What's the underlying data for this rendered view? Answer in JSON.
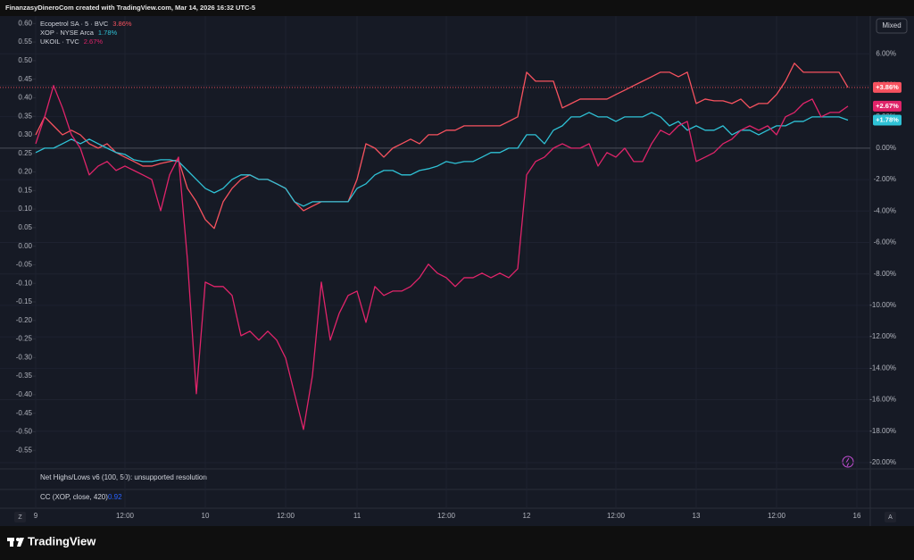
{
  "header": {
    "title": "FinanzasyDineroCom created with TradingView.com, Mar 14, 2026 16:32 UTC-5"
  },
  "chart_data": {
    "type": "line",
    "scale_mode": "Mixed",
    "categories": [
      "9",
      null,
      null,
      null,
      null,
      null,
      null,
      null,
      null,
      null,
      "12:00",
      null,
      null,
      null,
      null,
      null,
      null,
      null,
      null,
      "10",
      null,
      null,
      null,
      null,
      null,
      null,
      null,
      null,
      "12:00",
      null,
      null,
      null,
      null,
      null,
      null,
      null,
      "11",
      null,
      null,
      null,
      null,
      null,
      null,
      null,
      null,
      null,
      "12:00",
      null,
      null,
      null,
      null,
      null,
      null,
      null,
      null,
      "12",
      null,
      null,
      null,
      null,
      null,
      null,
      null,
      null,
      null,
      "12:00",
      null,
      null,
      null,
      null,
      null,
      null,
      null,
      null,
      "13",
      null,
      null,
      null,
      null,
      null,
      null,
      null,
      null,
      "12:00",
      null,
      null,
      null,
      null,
      null,
      null,
      null,
      null,
      "16"
    ],
    "series": [
      {
        "name": "Ecopetrol SA · 5 · BVC",
        "legend_value": "3.86%",
        "badge": "+3.86%",
        "color": "#f7525f",
        "axis": "y2",
        "values": [
          0.85,
          1.99,
          1.42,
          0.85,
          1.14,
          0.85,
          0.28,
          0,
          0.28,
          -0.28,
          -0.57,
          -0.85,
          -1.14,
          -1.14,
          -0.97,
          -0.85,
          -0.74,
          -2.56,
          -3.41,
          -4.54,
          -5.11,
          -3.41,
          -2.56,
          -1.99,
          -1.7,
          -1.99,
          -1.99,
          -2.27,
          -2.56,
          -3.41,
          -3.98,
          -3.69,
          -3.41,
          -3.41,
          -3.41,
          -3.41,
          -1.99,
          0.28,
          0,
          -0.57,
          0,
          0.28,
          0.57,
          0.28,
          0.85,
          0.85,
          1.14,
          1.14,
          1.42,
          1.42,
          1.42,
          1.42,
          1.42,
          1.7,
          1.99,
          4.83,
          4.26,
          4.26,
          4.26,
          2.56,
          2.84,
          3.12,
          3.12,
          3.12,
          3.12,
          3.41,
          3.69,
          3.98,
          4.26,
          4.54,
          4.83,
          4.83,
          4.54,
          4.83,
          2.84,
          3.12,
          3.01,
          3.01,
          2.84,
          3.12,
          2.56,
          2.84,
          2.84,
          3.41,
          4.26,
          5.4,
          4.83,
          4.83,
          4.83,
          4.83,
          4.83,
          3.86,
          null
        ]
      },
      {
        "name": "XOP · NYSE Arca",
        "legend_value": "1.78%",
        "badge": "+1.78%",
        "color": "#2fc2d6",
        "axis": "y2",
        "values": [
          -0.28,
          0,
          0,
          0.28,
          0.57,
          0.28,
          0.57,
          0.28,
          0,
          -0.28,
          -0.4,
          -0.74,
          -0.85,
          -0.85,
          -0.74,
          -0.74,
          -0.85,
          -1.42,
          -1.99,
          -2.56,
          -2.84,
          -2.56,
          -1.99,
          -1.7,
          -1.7,
          -1.99,
          -1.99,
          -2.27,
          -2.56,
          -3.41,
          -3.69,
          -3.41,
          -3.41,
          -3.41,
          -3.41,
          -3.41,
          -2.56,
          -2.27,
          -1.7,
          -1.42,
          -1.42,
          -1.7,
          -1.7,
          -1.42,
          -1.31,
          -1.14,
          -0.85,
          -0.97,
          -0.85,
          -0.85,
          -0.57,
          -0.28,
          -0.28,
          0,
          0,
          0.85,
          0.85,
          0.28,
          1.14,
          1.42,
          1.99,
          1.99,
          2.27,
          1.99,
          1.99,
          1.7,
          1.99,
          1.99,
          1.99,
          2.27,
          1.99,
          1.42,
          1.7,
          1.14,
          1.42,
          1.14,
          1.14,
          1.42,
          0.85,
          1.14,
          1.14,
          0.85,
          1.14,
          1.42,
          1.42,
          1.7,
          1.7,
          1.99,
          1.99,
          1.99,
          1.99,
          1.78,
          null
        ]
      },
      {
        "name": "UKOIL · TVC",
        "legend_value": "2.67%",
        "badge": "+2.67%",
        "color": "#e0246a",
        "axis": "y2",
        "values": [
          0.28,
          1.99,
          3.98,
          2.56,
          0.85,
          0,
          -1.7,
          -1.14,
          -0.85,
          -1.42,
          -1.14,
          -1.42,
          -1.7,
          -1.99,
          -3.98,
          -1.7,
          -0.57,
          -7.1,
          -15.62,
          -8.52,
          -8.8,
          -8.8,
          -9.37,
          -11.93,
          -11.64,
          -12.21,
          -11.64,
          -12.21,
          -13.35,
          -15.62,
          -17.89,
          -14.48,
          -8.52,
          -12.21,
          -10.51,
          -9.37,
          -9.09,
          -11.08,
          -8.8,
          -9.37,
          -9.09,
          -9.09,
          -8.8,
          -8.24,
          -7.38,
          -7.95,
          -8.24,
          -8.8,
          -8.24,
          -8.24,
          -7.95,
          -8.24,
          -7.95,
          -8.24,
          -7.67,
          -1.7,
          -0.85,
          -0.57,
          0,
          0.28,
          0,
          0,
          0.28,
          -1.14,
          -0.28,
          -0.57,
          0,
          -0.85,
          -0.85,
          0.28,
          1.14,
          0.85,
          1.42,
          1.7,
          -0.85,
          -0.57,
          -0.28,
          0.28,
          0.57,
          1.14,
          1.42,
          1.14,
          1.42,
          0.85,
          1.99,
          2.27,
          2.84,
          3.12,
          1.99,
          2.27,
          2.27,
          2.67,
          null
        ]
      }
    ],
    "ylim": [
      -0.6,
      0.62
    ],
    "yticks": [
      {
        "value": 0.6,
        "label": "0.60"
      },
      {
        "value": 0.55,
        "label": "0.55"
      },
      {
        "value": 0.5,
        "label": "0.50"
      },
      {
        "value": 0.45,
        "label": "0.45"
      },
      {
        "value": 0.4,
        "label": "0.40"
      },
      {
        "value": 0.35,
        "label": "0.35"
      },
      {
        "value": 0.3,
        "label": "0.30"
      },
      {
        "value": 0.25,
        "label": "0.25"
      },
      {
        "value": 0.2,
        "label": "0.20"
      },
      {
        "value": 0.15,
        "label": "0.15"
      },
      {
        "value": 0.1,
        "label": "0.10"
      },
      {
        "value": 0.05,
        "label": "0.05"
      },
      {
        "value": 0,
        "label": "0.00"
      },
      {
        "value": -0.05,
        "label": "-0.05"
      },
      {
        "value": -0.1,
        "label": "-0.10"
      },
      {
        "value": -0.15,
        "label": "-0.15"
      },
      {
        "value": -0.2,
        "label": "-0.20"
      },
      {
        "value": -0.25,
        "label": "-0.25"
      },
      {
        "value": -0.3,
        "label": "-0.30"
      },
      {
        "value": -0.35,
        "label": "-0.35"
      },
      {
        "value": -0.4,
        "label": "-0.40"
      },
      {
        "value": -0.45,
        "label": "-0.45"
      },
      {
        "value": -0.5,
        "label": "-0.50"
      },
      {
        "value": -0.55,
        "label": "-0.55"
      }
    ],
    "y2lim": [
      -20.4,
      8.4
    ],
    "y2ticks": [
      {
        "value": 6,
        "label": "6.00%"
      },
      {
        "value": 4,
        "label": "4.00%"
      },
      {
        "value": 2,
        "label": "2.00%"
      },
      {
        "value": 0,
        "label": "0.00%"
      },
      {
        "value": -2,
        "label": "-2.00%"
      },
      {
        "value": -4,
        "label": "-4.00%"
      },
      {
        "value": -6,
        "label": "-6.00%"
      },
      {
        "value": -8,
        "label": "-8.00%"
      },
      {
        "value": -10,
        "label": "-10.00%"
      },
      {
        "value": -12,
        "label": "-12.00%"
      },
      {
        "value": -14,
        "label": "-14.00%"
      },
      {
        "value": -16,
        "label": "-16.00%"
      },
      {
        "value": -18,
        "label": "-18.00%"
      },
      {
        "value": -20,
        "label": "-20.00%"
      }
    ],
    "grid": true
  },
  "indicators": [
    {
      "label": "Net Highs/Lows v6 (100, 50): unsupported resolution"
    },
    {
      "label": "CC (XOP, close, 420)",
      "value": "0.92"
    }
  ],
  "buttons": {
    "left": "Z",
    "right": "A"
  },
  "footer": {
    "brand": "TradingView"
  }
}
